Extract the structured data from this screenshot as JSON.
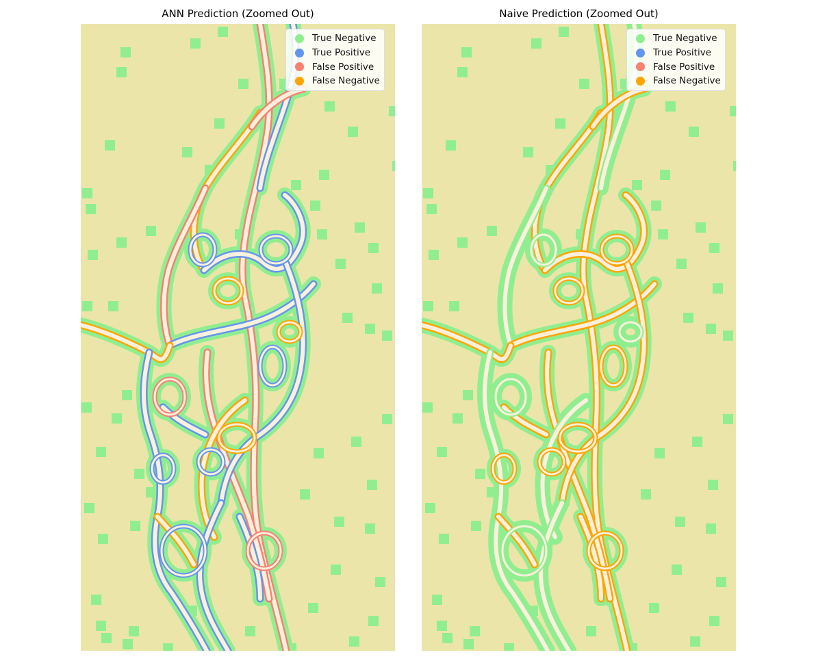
{
  "chart_data": [
    {
      "type": "heatmap",
      "title": "ANN Prediction (Zoomed Out)",
      "xlabel": "",
      "ylabel": "",
      "axes_visible": false,
      "background_color": "#ebe5a9",
      "legend_placement": "top-right",
      "legend": [
        {
          "label": "True Negative",
          "color": "#90ee90"
        },
        {
          "label": "True Positive",
          "color": "#6495ed"
        },
        {
          "label": "False Positive",
          "color": "#fa8072"
        },
        {
          "label": "False Negative",
          "color": "#ffa500"
        }
      ],
      "dominant_error_classes": [
        "False Positive",
        "True Positive",
        "False Negative"
      ]
    },
    {
      "type": "heatmap",
      "title": "Naive Prediction (Zoomed Out)",
      "xlabel": "",
      "ylabel": "",
      "axes_visible": false,
      "background_color": "#ebe5a9",
      "legend_placement": "top-right",
      "legend": [
        {
          "label": "True Negative",
          "color": "#90ee90"
        },
        {
          "label": "True Positive",
          "color": "#6495ed"
        },
        {
          "label": "False Positive",
          "color": "#fa8072"
        },
        {
          "label": "False Negative",
          "color": "#ffa500"
        }
      ],
      "dominant_error_classes": [
        "False Negative"
      ]
    }
  ],
  "colors": {
    "background": "#ebe5a9",
    "river_interior": "#fbf0dc",
    "true_negative": "#90ee90",
    "true_positive": "#6495ed",
    "false_positive": "#fa8072",
    "false_negative": "#ffa500"
  }
}
